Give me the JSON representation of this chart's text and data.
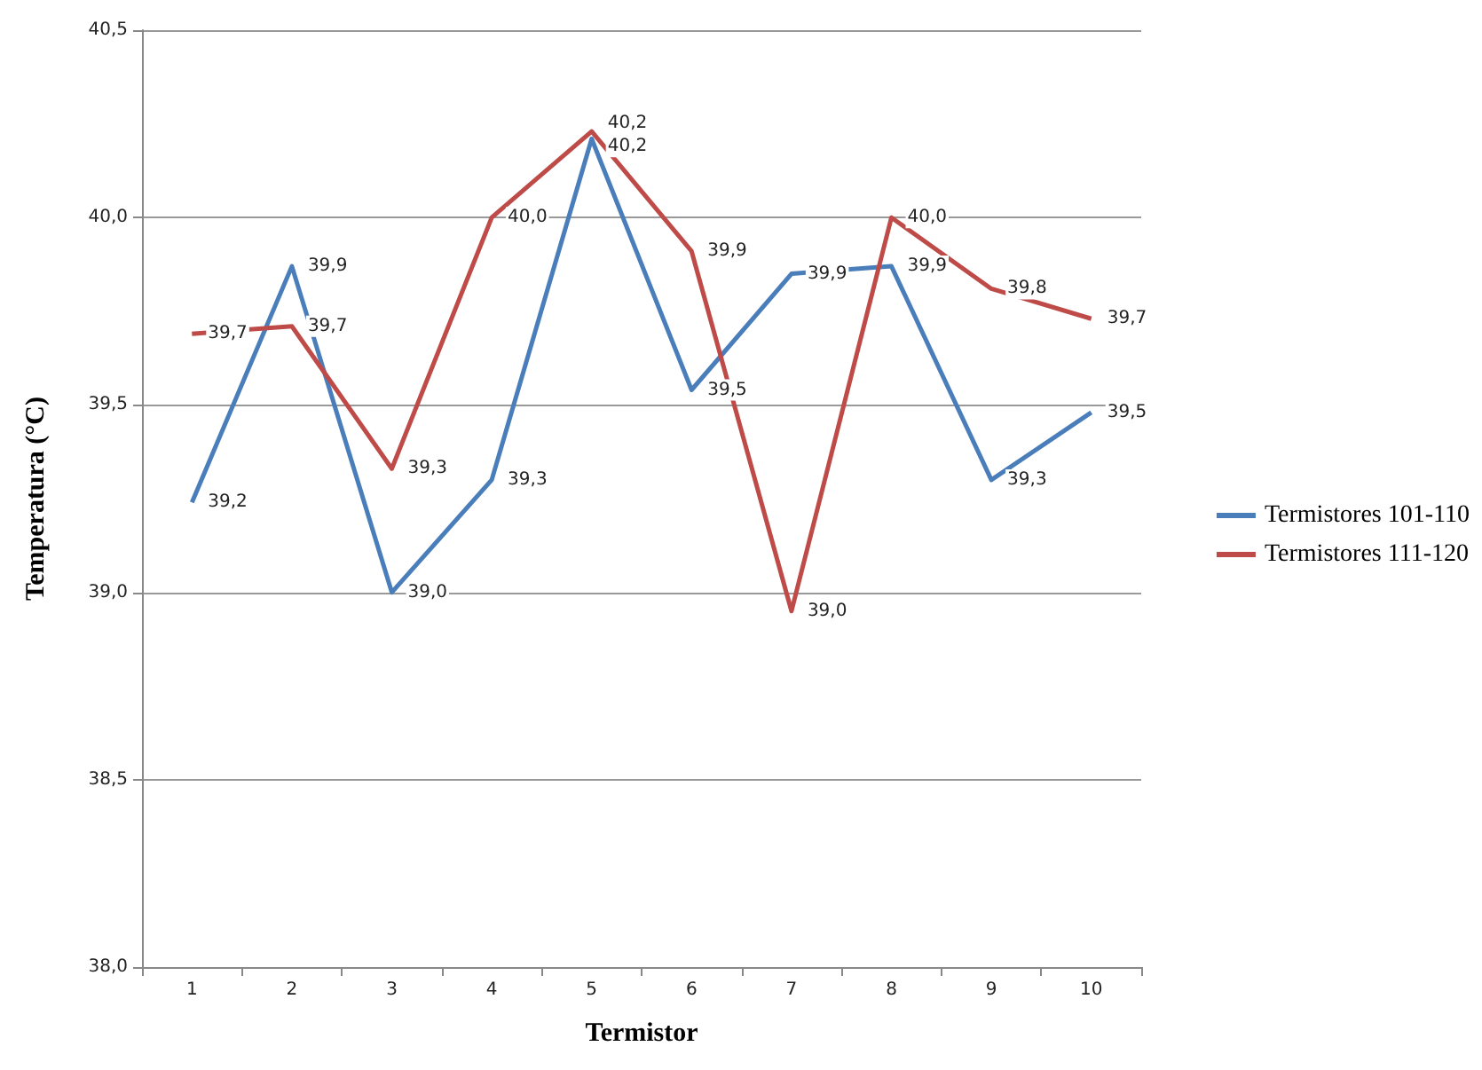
{
  "chart_data": {
    "type": "line",
    "xlabel": "Termistor",
    "ylabel": "Temperatura (°C)",
    "categories": [
      "1",
      "2",
      "3",
      "4",
      "5",
      "6",
      "7",
      "8",
      "9",
      "10"
    ],
    "series": [
      {
        "name": "Termistores 101-110",
        "color": "#4a7ebb",
        "values": [
          39.24,
          39.87,
          39.0,
          39.3,
          40.21,
          39.54,
          39.85,
          39.87,
          39.3,
          39.48
        ],
        "value_labels": [
          "39,2",
          "39,9",
          "39,0",
          "39,3",
          "40,2",
          "39,5",
          "39,9",
          "39,9",
          "39,3",
          "39,5"
        ]
      },
      {
        "name": "Termistores 111-120",
        "color": "#be4b48",
        "values": [
          39.69,
          39.71,
          39.33,
          40.0,
          40.23,
          39.91,
          38.95,
          40.0,
          39.81,
          39.73
        ],
        "value_labels": [
          "39,7",
          "39,7",
          "39,3",
          "40,0",
          "40,2",
          "39,9",
          "39,0",
          "40,0",
          "39,8",
          "39,7"
        ]
      }
    ],
    "ylim": [
      38.0,
      40.5
    ],
    "yticks": [
      {
        "value": 38.0,
        "label": "38,0"
      },
      {
        "value": 38.5,
        "label": "38,5"
      },
      {
        "value": 39.0,
        "label": "39,0"
      },
      {
        "value": 39.5,
        "label": "39,5"
      },
      {
        "value": 40.0,
        "label": "40,0"
      },
      {
        "value": 40.5,
        "label": "40,5"
      }
    ],
    "grid": "y",
    "legend": "right",
    "marker": "none",
    "line_style": "solid"
  }
}
